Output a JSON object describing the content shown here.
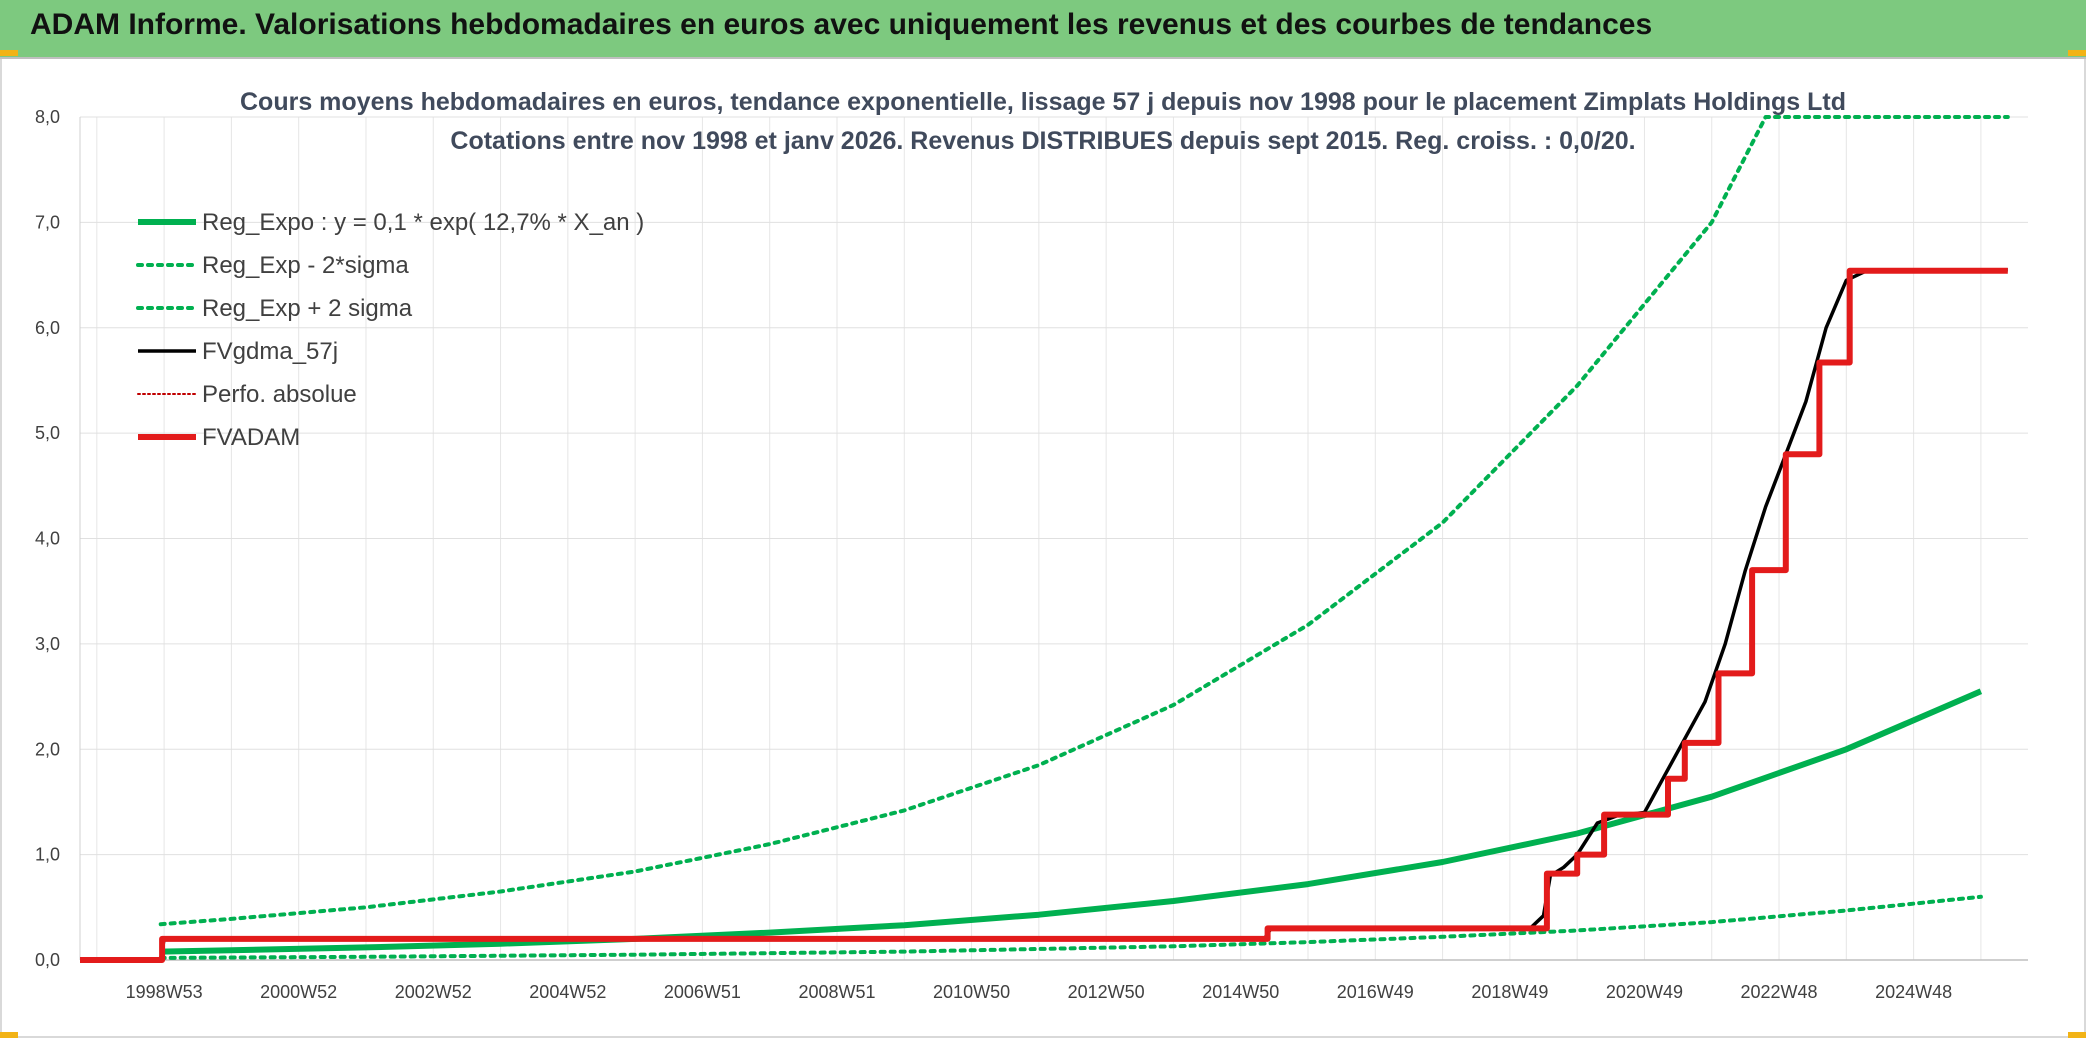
{
  "banner": {
    "title": "ADAM Informe. Valorisations hebdomadaires en euros avec uniquement les revenus et des courbes de tendances"
  },
  "chart_data": {
    "type": "line",
    "title_line1": "Cours moyens hebdomadaires en euros, tendance exponentielle, lissage 57 j depuis nov 1998 pour le placement Zimplats Holdings Ltd",
    "title_line2": "Cotations entre nov 1998 et janv 2026. Revenus DISTRIBUES depuis sept 2015. Reg. croiss. : 0,0/20.",
    "x_range": [
      1997.75,
      2026.7
    ],
    "ylim": [
      0,
      8
    ],
    "y_ticks": [
      "0,0",
      "1,0",
      "2,0",
      "3,0",
      "4,0",
      "5,0",
      "6,0",
      "7,0",
      "8,0"
    ],
    "x_tick_labels": [
      {
        "label": "1998W53",
        "x": 1999.0
      },
      {
        "label": "2000W52",
        "x": 2001.0
      },
      {
        "label": "2002W52",
        "x": 2003.0
      },
      {
        "label": "2004W52",
        "x": 2005.0
      },
      {
        "label": "2006W51",
        "x": 2007.0
      },
      {
        "label": "2008W51",
        "x": 2009.0
      },
      {
        "label": "2010W50",
        "x": 2011.0
      },
      {
        "label": "2012W50",
        "x": 2013.0
      },
      {
        "label": "2014W50",
        "x": 2015.0
      },
      {
        "label": "2016W49",
        "x": 2017.0
      },
      {
        "label": "2018W49",
        "x": 2019.0
      },
      {
        "label": "2020W49",
        "x": 2021.0
      },
      {
        "label": "2022W48",
        "x": 2023.0
      },
      {
        "label": "2024W48",
        "x": 2025.0
      }
    ],
    "series": [
      {
        "name": "Reg_Expo : y = 0,1 * exp( 12,7% *  X_an )",
        "color": "#00b050",
        "style": "solid-thick",
        "points": [
          [
            1998.95,
            0.08
          ],
          [
            2000,
            0.093
          ],
          [
            2002,
            0.12
          ],
          [
            2004,
            0.155
          ],
          [
            2006,
            0.2
          ],
          [
            2008,
            0.26
          ],
          [
            2010,
            0.33
          ],
          [
            2012,
            0.43
          ],
          [
            2014,
            0.56
          ],
          [
            2016,
            0.72
          ],
          [
            2018,
            0.93
          ],
          [
            2020,
            1.2
          ],
          [
            2022,
            1.55
          ],
          [
            2024,
            2.0
          ],
          [
            2026,
            2.55
          ]
        ]
      },
      {
        "name": "Reg_Exp - 2*sigma",
        "color": "#00b050",
        "style": "dotted",
        "points": [
          [
            1998.95,
            0.02
          ],
          [
            2002,
            0.03
          ],
          [
            2006,
            0.05
          ],
          [
            2010,
            0.08
          ],
          [
            2014,
            0.13
          ],
          [
            2016,
            0.17
          ],
          [
            2018,
            0.22
          ],
          [
            2020,
            0.28
          ],
          [
            2022,
            0.36
          ],
          [
            2024,
            0.47
          ],
          [
            2026,
            0.6
          ]
        ]
      },
      {
        "name": "Reg_Exp + 2 sigma",
        "color": "#00b050",
        "style": "dotted",
        "points": [
          [
            1998.95,
            0.34
          ],
          [
            2000,
            0.39
          ],
          [
            2002,
            0.5
          ],
          [
            2004,
            0.65
          ],
          [
            2006,
            0.84
          ],
          [
            2008,
            1.1
          ],
          [
            2010,
            1.42
          ],
          [
            2012,
            1.85
          ],
          [
            2014,
            2.42
          ],
          [
            2016,
            3.18
          ],
          [
            2018,
            4.15
          ],
          [
            2020,
            5.45
          ],
          [
            2022,
            7.0
          ],
          [
            2022.8,
            8.0
          ],
          [
            2026.4,
            8.0
          ]
        ]
      },
      {
        "name": "FVgdma_57j",
        "color": "#000000",
        "style": "solid",
        "points": [
          [
            1997.75,
            0
          ],
          [
            1998.95,
            0
          ],
          [
            1999.0,
            0.2
          ],
          [
            2000,
            0.2
          ],
          [
            2004,
            0.2
          ],
          [
            2008,
            0.2
          ],
          [
            2012,
            0.2
          ],
          [
            2015.35,
            0.2
          ],
          [
            2015.45,
            0.3
          ],
          [
            2017,
            0.3
          ],
          [
            2019.3,
            0.3
          ],
          [
            2019.5,
            0.42
          ],
          [
            2019.6,
            0.8
          ],
          [
            2019.8,
            0.88
          ],
          [
            2020.0,
            1.0
          ],
          [
            2020.3,
            1.3
          ],
          [
            2020.6,
            1.37
          ],
          [
            2021.0,
            1.4
          ],
          [
            2021.3,
            1.75
          ],
          [
            2021.6,
            2.1
          ],
          [
            2021.9,
            2.45
          ],
          [
            2022.2,
            3.0
          ],
          [
            2022.5,
            3.7
          ],
          [
            2022.8,
            4.3
          ],
          [
            2023.1,
            4.8
          ],
          [
            2023.4,
            5.3
          ],
          [
            2023.7,
            6.0
          ],
          [
            2024.0,
            6.45
          ],
          [
            2024.3,
            6.54
          ],
          [
            2026.4,
            6.55
          ]
        ]
      },
      {
        "name": "Perfo. absolue",
        "color": "#c00000",
        "style": "dotted-thin",
        "points": []
      },
      {
        "name": "FVADAM",
        "color": "#e31b1b",
        "style": "solid-thick",
        "points": [
          [
            1997.75,
            0
          ],
          [
            1998.97,
            0
          ],
          [
            1998.97,
            0.2
          ],
          [
            2015.4,
            0.2
          ],
          [
            2015.4,
            0.3
          ],
          [
            2019.55,
            0.3
          ],
          [
            2019.55,
            0.82
          ],
          [
            2020.0,
            0.82
          ],
          [
            2020.0,
            1.0
          ],
          [
            2020.4,
            1.0
          ],
          [
            2020.4,
            1.38
          ],
          [
            2021.35,
            1.38
          ],
          [
            2021.35,
            1.72
          ],
          [
            2021.6,
            1.72
          ],
          [
            2021.6,
            2.06
          ],
          [
            2022.1,
            2.06
          ],
          [
            2022.1,
            2.72
          ],
          [
            2022.6,
            2.72
          ],
          [
            2022.6,
            3.7
          ],
          [
            2023.1,
            3.7
          ],
          [
            2023.1,
            4.8
          ],
          [
            2023.6,
            4.8
          ],
          [
            2023.6,
            5.67
          ],
          [
            2024.05,
            5.67
          ],
          [
            2024.05,
            6.54
          ],
          [
            2026.4,
            6.54
          ]
        ]
      }
    ]
  }
}
